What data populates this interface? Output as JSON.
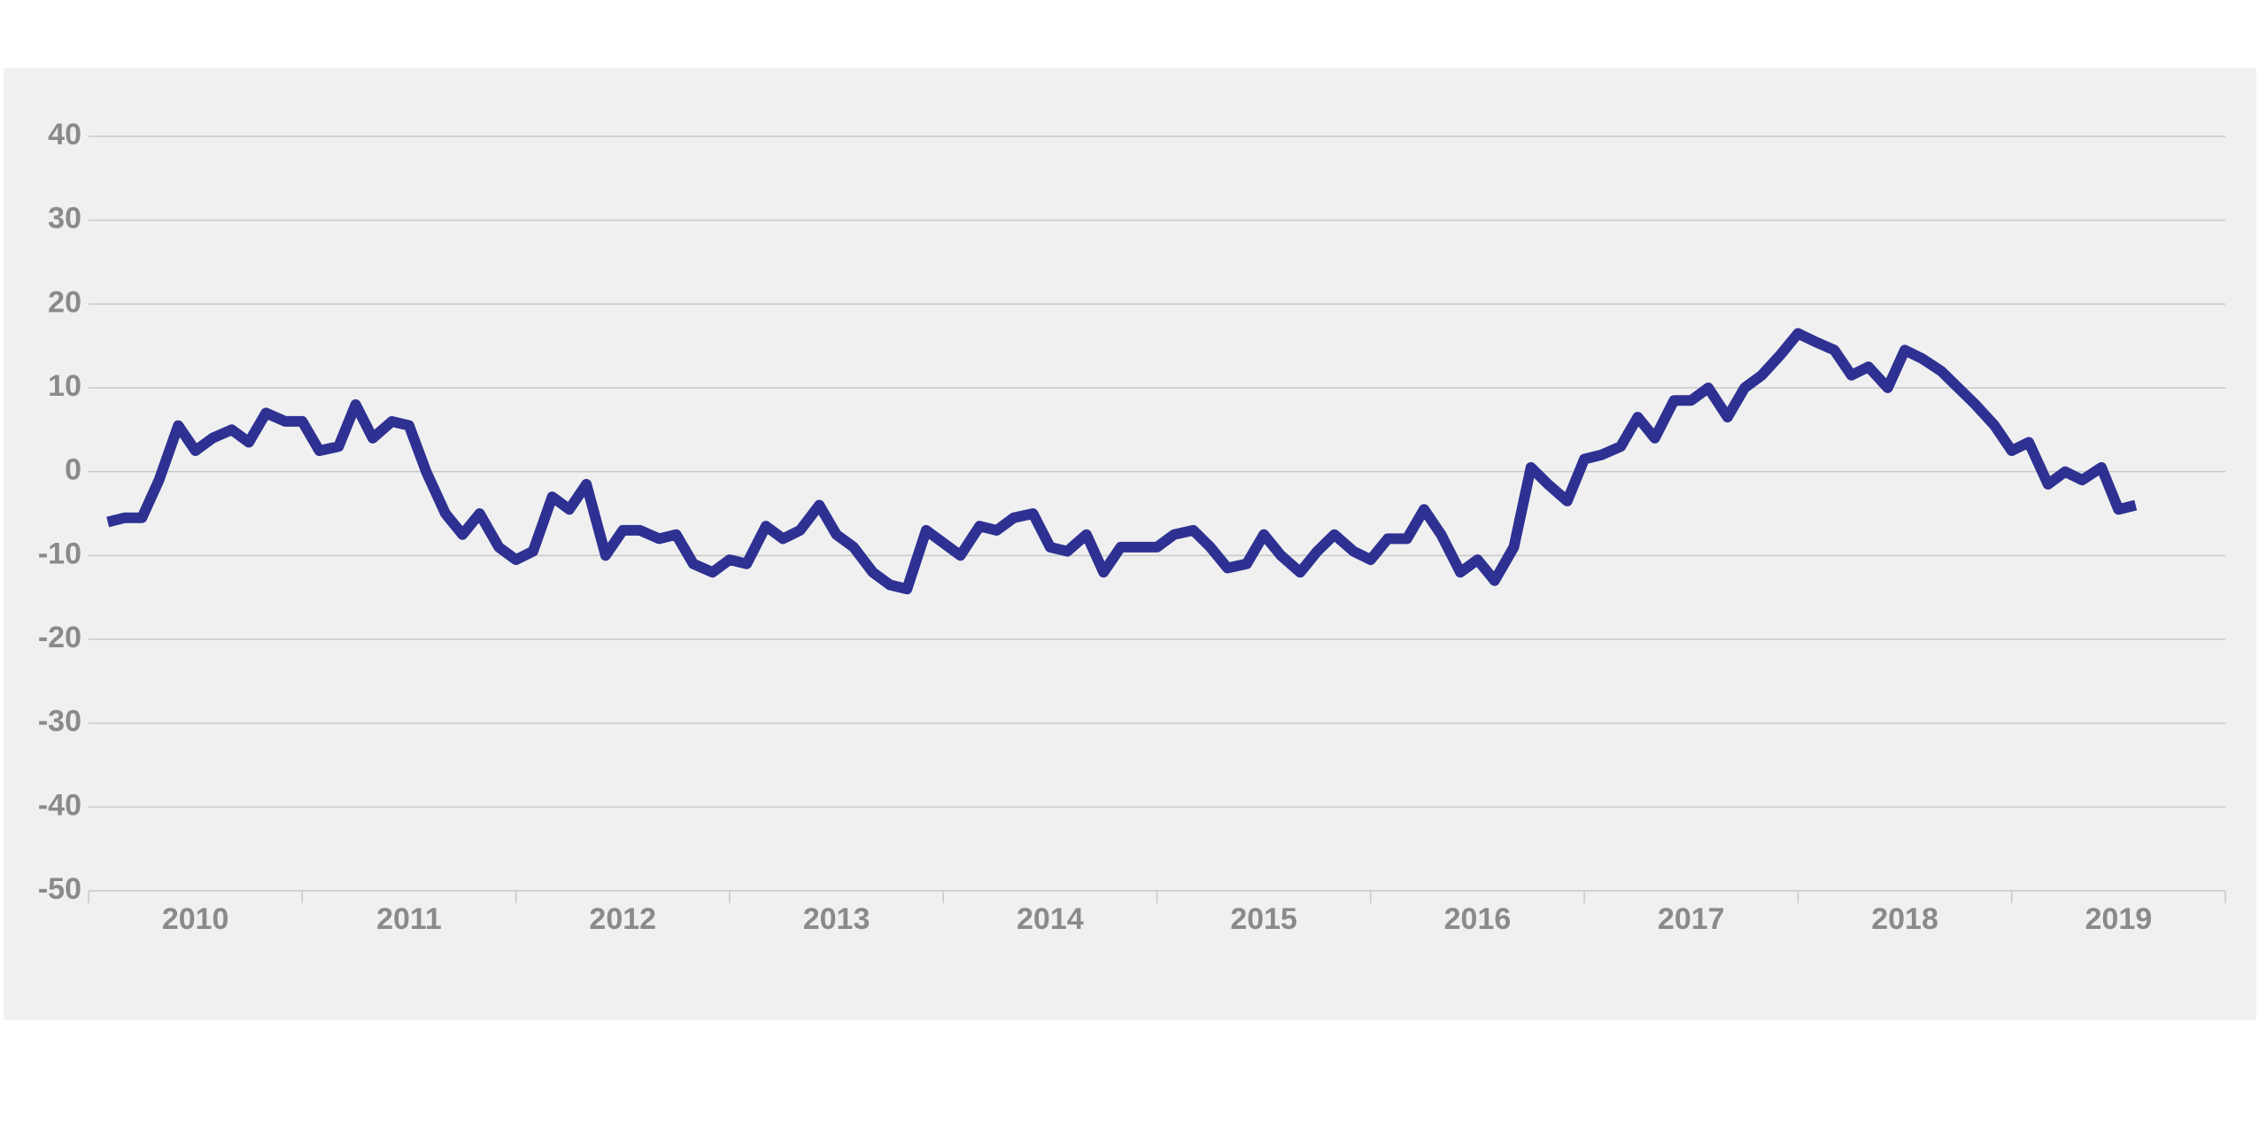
{
  "colors": {
    "series": "#2e3192",
    "panel_background": "#f0f0f0",
    "gridline": "#c8c8c8",
    "tick_label": "#8a8a8a"
  },
  "chart_data": {
    "type": "line",
    "title": "",
    "xlabel": "",
    "ylabel": "",
    "grid": true,
    "legend": "none",
    "ylim": [
      -50,
      40
    ],
    "xlim": [
      2010.0,
      2020.0
    ],
    "yticks": [
      "40",
      "30",
      "20",
      "10",
      "0",
      "-10",
      "-20",
      "-30",
      "-40",
      "-50"
    ],
    "xtick_labels": [
      "2010",
      "2011",
      "2012",
      "2013",
      "2014",
      "2015",
      "2016",
      "2017",
      "2018",
      "2019"
    ],
    "series": [
      {
        "color": "#2e3192",
        "points": [
          [
            2010.09,
            -6
          ],
          [
            2010.17,
            -5.5
          ],
          [
            2010.25,
            -5.5
          ],
          [
            2010.33,
            -1
          ],
          [
            2010.42,
            5.5
          ],
          [
            2010.5,
            2.5
          ],
          [
            2010.58,
            4
          ],
          [
            2010.67,
            5
          ],
          [
            2010.75,
            3.5
          ],
          [
            2010.83,
            7
          ],
          [
            2010.92,
            6
          ],
          [
            2011.0,
            6
          ],
          [
            2011.08,
            2.5
          ],
          [
            2011.17,
            3
          ],
          [
            2011.25,
            8
          ],
          [
            2011.33,
            4
          ],
          [
            2011.42,
            6
          ],
          [
            2011.5,
            5.5
          ],
          [
            2011.58,
            0
          ],
          [
            2011.67,
            -5
          ],
          [
            2011.75,
            -7.5
          ],
          [
            2011.83,
            -5
          ],
          [
            2011.92,
            -9
          ],
          [
            2012.0,
            -10.5
          ],
          [
            2012.08,
            -9.5
          ],
          [
            2012.17,
            -3
          ],
          [
            2012.25,
            -4.5
          ],
          [
            2012.33,
            -1.5
          ],
          [
            2012.42,
            -10
          ],
          [
            2012.5,
            -7
          ],
          [
            2012.58,
            -7
          ],
          [
            2012.67,
            -8
          ],
          [
            2012.75,
            -7.5
          ],
          [
            2012.83,
            -11
          ],
          [
            2012.92,
            -12
          ],
          [
            2013.0,
            -10.5
          ],
          [
            2013.08,
            -11
          ],
          [
            2013.17,
            -6.5
          ],
          [
            2013.25,
            -8
          ],
          [
            2013.33,
            -7
          ],
          [
            2013.42,
            -4
          ],
          [
            2013.5,
            -7.5
          ],
          [
            2013.58,
            -9
          ],
          [
            2013.67,
            -12
          ],
          [
            2013.75,
            -13.5
          ],
          [
            2013.83,
            -14
          ],
          [
            2013.92,
            -7
          ],
          [
            2014.0,
            -8.5
          ],
          [
            2014.08,
            -10
          ],
          [
            2014.17,
            -6.5
          ],
          [
            2014.25,
            -7
          ],
          [
            2014.33,
            -5.5
          ],
          [
            2014.42,
            -5
          ],
          [
            2014.5,
            -9
          ],
          [
            2014.58,
            -9.5
          ],
          [
            2014.67,
            -7.5
          ],
          [
            2014.75,
            -12
          ],
          [
            2014.83,
            -9
          ],
          [
            2014.92,
            -9
          ],
          [
            2015.0,
            -9
          ],
          [
            2015.08,
            -7.5
          ],
          [
            2015.17,
            -7
          ],
          [
            2015.25,
            -9
          ],
          [
            2015.33,
            -11.5
          ],
          [
            2015.42,
            -11
          ],
          [
            2015.5,
            -7.5
          ],
          [
            2015.58,
            -10
          ],
          [
            2015.67,
            -12
          ],
          [
            2015.75,
            -9.5
          ],
          [
            2015.83,
            -7.5
          ],
          [
            2015.92,
            -9.5
          ],
          [
            2016.0,
            -10.5
          ],
          [
            2016.08,
            -8
          ],
          [
            2016.17,
            -8
          ],
          [
            2016.25,
            -4.5
          ],
          [
            2016.33,
            -7.5
          ],
          [
            2016.42,
            -12
          ],
          [
            2016.5,
            -10.5
          ],
          [
            2016.58,
            -13
          ],
          [
            2016.67,
            -9
          ],
          [
            2016.75,
            0.5
          ],
          [
            2016.83,
            -1.5
          ],
          [
            2016.92,
            -3.5
          ],
          [
            2017.0,
            1.5
          ],
          [
            2017.08,
            2
          ],
          [
            2017.17,
            3
          ],
          [
            2017.25,
            6.5
          ],
          [
            2017.33,
            4
          ],
          [
            2017.42,
            8.5
          ],
          [
            2017.5,
            8.5
          ],
          [
            2017.58,
            10
          ],
          [
            2017.67,
            6.5
          ],
          [
            2017.75,
            10
          ],
          [
            2017.83,
            11.5
          ],
          [
            2017.92,
            14
          ],
          [
            2018.0,
            16.5
          ],
          [
            2018.08,
            15.5
          ],
          [
            2018.17,
            14.5
          ],
          [
            2018.25,
            11.5
          ],
          [
            2018.33,
            12.5
          ],
          [
            2018.42,
            10
          ],
          [
            2018.5,
            14.5
          ],
          [
            2018.58,
            13.5
          ],
          [
            2018.67,
            12
          ],
          [
            2018.75,
            10
          ],
          [
            2018.83,
            8
          ],
          [
            2018.92,
            5.5
          ],
          [
            2019.0,
            2.5
          ],
          [
            2019.08,
            3.5
          ],
          [
            2019.17,
            -1.5
          ],
          [
            2019.25,
            0
          ],
          [
            2019.33,
            -1
          ],
          [
            2019.42,
            0.5
          ],
          [
            2019.5,
            -4.5
          ],
          [
            2019.58,
            -4
          ]
        ]
      }
    ]
  }
}
